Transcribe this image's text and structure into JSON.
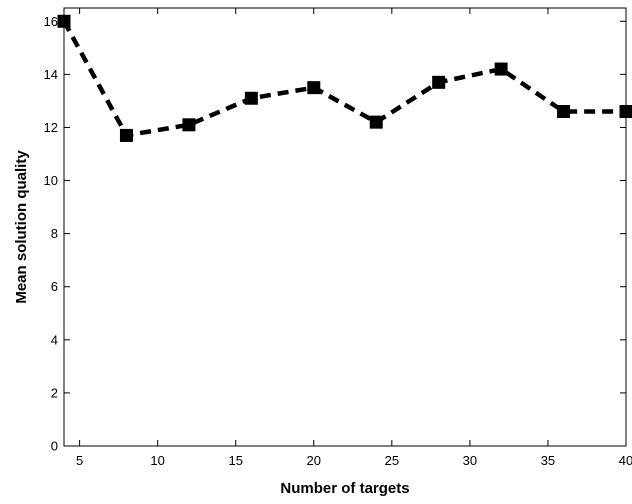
{
  "chart_data": {
    "type": "line",
    "title": "",
    "xlabel": "Number of targets",
    "ylabel": "Mean solution quality",
    "xlim": [
      4,
      40
    ],
    "ylim": [
      0,
      16.5
    ],
    "xticks": [
      5,
      10,
      15,
      20,
      25,
      30,
      35,
      40
    ],
    "yticks": [
      0,
      2,
      4,
      6,
      8,
      10,
      12,
      14,
      16
    ],
    "grid": false,
    "legend": "none",
    "series": [
      {
        "x": [
          4,
          8,
          12,
          16,
          20,
          24,
          28,
          32,
          36,
          40
        ],
        "y": [
          16.0,
          11.7,
          12.1,
          13.1,
          13.5,
          12.2,
          13.7,
          14.2,
          12.6,
          12.6
        ],
        "line_style": "dashed",
        "marker": "square",
        "color": "#000000"
      }
    ]
  }
}
